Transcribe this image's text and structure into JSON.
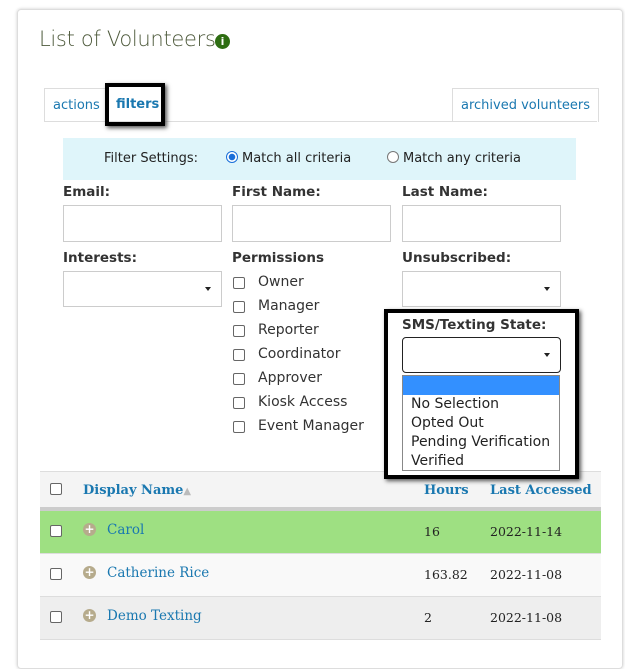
{
  "page": {
    "title": "List of Volunteers",
    "info_icon": "info-icon"
  },
  "tabs": [
    {
      "label": "actions"
    },
    {
      "label": "filters",
      "active": true
    },
    {
      "label": "archived volunteers"
    }
  ],
  "filter_settings": {
    "label": "Filter Settings:",
    "options": [
      {
        "label": "Match all criteria",
        "selected": true
      },
      {
        "label": "Match any criteria",
        "selected": false
      }
    ]
  },
  "fields": {
    "email": {
      "label": "Email:",
      "value": ""
    },
    "first_name": {
      "label": "First Name:",
      "value": ""
    },
    "last_name": {
      "label": "Last Name:",
      "value": ""
    },
    "interests": {
      "label": "Interests:",
      "value": ""
    },
    "unsubscribed": {
      "label": "Unsubscribed:",
      "value": ""
    },
    "sms_state": {
      "label": "SMS/Texting State:",
      "value": ""
    }
  },
  "permissions": {
    "label": "Permissions",
    "items": [
      "Owner",
      "Manager",
      "Reporter",
      "Coordinator",
      "Approver",
      "Kiosk Access",
      "Event Manager"
    ]
  },
  "sms_options": [
    "",
    "No Selection",
    "Opted Out",
    "Pending Verification",
    "Verified"
  ],
  "colors": {
    "highlight_row": "#9ee082",
    "accent": "#1a78b0",
    "option_highlight": "#3390ff",
    "filter_band": "#dff5fa"
  },
  "table": {
    "headers": {
      "display_name": "Display Name",
      "sort_icon": "sort-asc-icon",
      "hours": "Hours",
      "last_accessed": "Last Accessed"
    },
    "rows": [
      {
        "name": "Carol",
        "hours": "16",
        "last_accessed": "2022-11-14",
        "highlighted": true
      },
      {
        "name": "Catherine Rice",
        "hours": "163.82",
        "last_accessed": "2022-11-08"
      },
      {
        "name": "Demo Texting",
        "hours": "2",
        "last_accessed": "2022-11-08"
      }
    ]
  }
}
